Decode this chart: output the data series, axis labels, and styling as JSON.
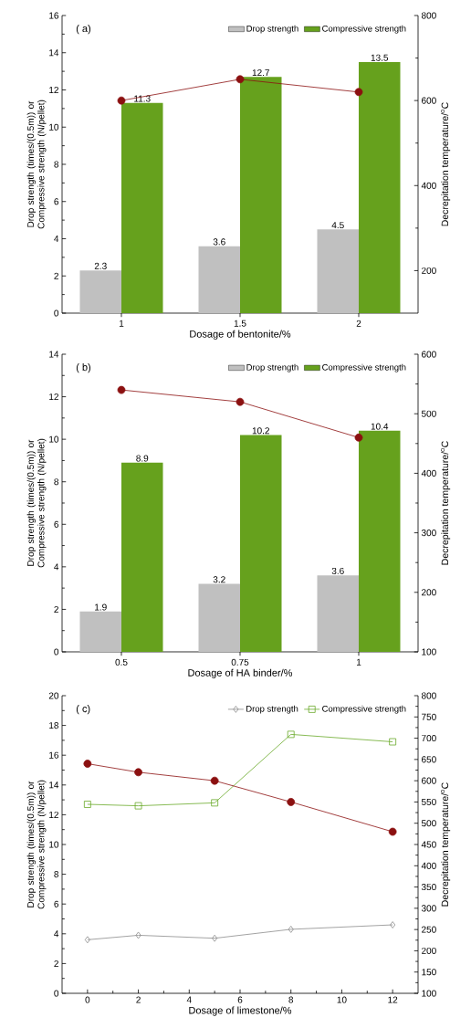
{
  "chart_data": [
    {
      "type": "bar",
      "categories": [
        "1",
        "1.5",
        "2"
      ],
      "xlabel": "Dosage of bentonite/%",
      "ylabel": "Drop strength (times/(0.5m)) or Compressive strength (N/pellet)",
      "y2label": "Decrepitation temperature/$^{o}$C",
      "ylim": [
        0,
        16
      ],
      "yticks": [
        0,
        2,
        4,
        6,
        8,
        10,
        12,
        14,
        16
      ],
      "y2lim": [
        100,
        800
      ],
      "y2ticks": [
        200,
        400,
        600,
        800
      ],
      "legend": "top right",
      "annotations": [
        "( a)"
      ],
      "series": [
        {
          "name": "Drop strength",
          "color": "#c0c0c0",
          "values": [
            2.3,
            3.6,
            4.5
          ],
          "value_labels": [
            "2.3",
            "3.6",
            "4.5"
          ]
        },
        {
          "name": "Compressive strength",
          "color": "#66a11d",
          "values": [
            11.3,
            12.7,
            13.5
          ],
          "value_labels": [
            "11.3",
            "12.7",
            "13.5"
          ]
        },
        {
          "type": "line",
          "axis": "y2",
          "color": "#8b1010",
          "marker": "circle",
          "values": [
            600,
            650,
            620
          ]
        }
      ]
    },
    {
      "type": "bar",
      "categories": [
        "0.5",
        "0.75",
        "1"
      ],
      "xlabel": "Dosage of HA binder/%",
      "ylabel": "Drop strength (times/(0.5m)) or Compressive strength (N/pellet)",
      "y2label": "Decrepitation temperature/$^{o}$C",
      "ylim": [
        0,
        14
      ],
      "yticks": [
        0,
        2,
        4,
        6,
        8,
        10,
        12,
        14
      ],
      "y2lim": [
        100,
        600
      ],
      "y2ticks": [
        100,
        200,
        300,
        400,
        500,
        600
      ],
      "legend": "top right",
      "annotations": [
        "( b)"
      ],
      "series": [
        {
          "name": "Drop strength",
          "color": "#c0c0c0",
          "values": [
            1.9,
            3.2,
            3.6
          ],
          "value_labels": [
            "1.9",
            "3.2",
            "3.6"
          ]
        },
        {
          "name": "Compressive strength",
          "color": "#66a11d",
          "values": [
            8.9,
            10.2,
            10.4
          ],
          "value_labels": [
            "8.9",
            "10.2",
            "10.4"
          ]
        },
        {
          "type": "line",
          "axis": "y2",
          "color": "#8b1010",
          "marker": "circle",
          "values": [
            540,
            520,
            460
          ]
        }
      ]
    },
    {
      "type": "line",
      "x": [
        0,
        2,
        5,
        8,
        12
      ],
      "xlabel": "Dosage of limestone/%",
      "ylabel": "Drop strength (times/(0.5m)) or Compressive strength (N/pellet)",
      "y2label": "Decrepitation temperature/$^{o}$C",
      "xlim": [
        -1,
        13
      ],
      "xticks": [
        0,
        2,
        4,
        6,
        8,
        10,
        12
      ],
      "ylim": [
        0,
        20
      ],
      "yticks": [
        0,
        2,
        4,
        6,
        8,
        10,
        12,
        14,
        16,
        18,
        20
      ],
      "y2lim": [
        100,
        800
      ],
      "y2ticks": [
        100,
        150,
        200,
        250,
        300,
        350,
        400,
        450,
        500,
        550,
        600,
        650,
        700,
        750,
        800
      ],
      "legend": "top right",
      "annotations": [
        "( c)"
      ],
      "series": [
        {
          "name": "Drop strength",
          "color": "#8c8c8c",
          "marker": "diamond",
          "values": [
            3.6,
            3.9,
            3.7,
            4.3,
            4.6
          ]
        },
        {
          "name": "Compressive strength",
          "color": "#6aaa2a",
          "marker": "square",
          "values": [
            12.7,
            12.6,
            12.8,
            17.4,
            16.9
          ]
        },
        {
          "axis": "y2",
          "color": "#8b1010",
          "marker": "circle",
          "values": [
            640,
            620,
            600,
            550,
            480
          ]
        }
      ]
    }
  ]
}
